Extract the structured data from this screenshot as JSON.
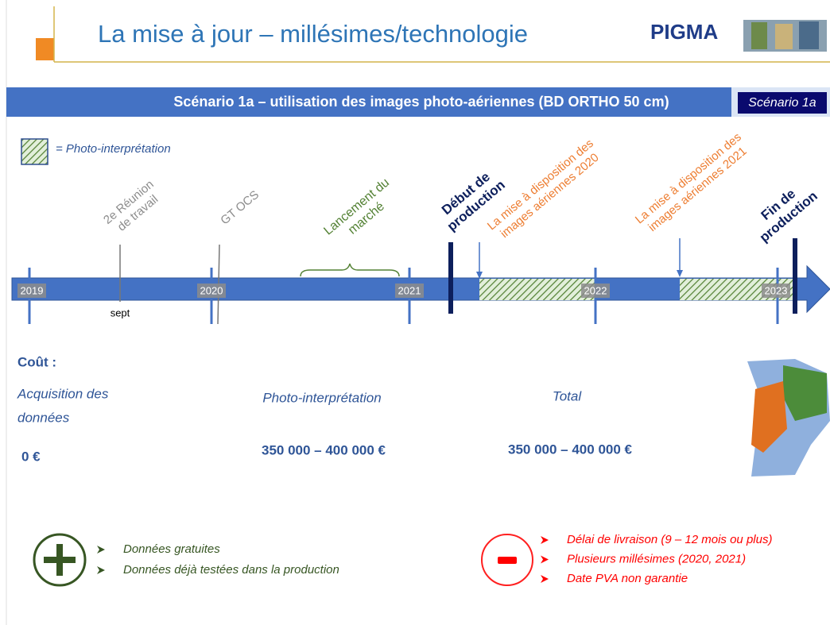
{
  "header": {
    "title": "La mise à jour – millésimes/technologie",
    "logo": "PIGMA"
  },
  "banner": {
    "title": "Scénario 1a – utilisation des images photo-aériennes (BD ORTHO 50 cm)",
    "tag": "Scénario 1a"
  },
  "legend": {
    "label": "= Photo-interprétation"
  },
  "timeline": {
    "years": [
      "2019",
      "2020",
      "2021",
      "2022",
      "2023"
    ],
    "month": "sept",
    "events": [
      {
        "lines": [
          "2e Réunion",
          "de travail"
        ]
      },
      {
        "lines": [
          "GT OCS"
        ]
      },
      {
        "lines": [
          "Lancement du",
          "marché"
        ]
      },
      {
        "lines": [
          "Début de",
          "production"
        ]
      },
      {
        "lines": [
          "La mise à disposition des",
          "images aériennes 2020"
        ]
      },
      {
        "lines": [
          "La mise à disposition des",
          "images aériennes 2021"
        ]
      },
      {
        "lines": [
          "Fin de",
          "production"
        ]
      }
    ]
  },
  "cost": {
    "heading": "Coût :",
    "columns": [
      {
        "label": [
          "Acquisition des",
          "données"
        ],
        "value": "0 €"
      },
      {
        "label": [
          "Photo-interprétation"
        ],
        "value": "350 000 – 400 000 €"
      },
      {
        "label": [
          "Total"
        ],
        "value": "350 000 – 400 000 €"
      }
    ]
  },
  "pros": [
    "Données gratuites",
    "Données déjà testées dans la production"
  ],
  "cons": [
    "Délai de livraison (9 – 12 mois ou plus)",
    "Plusieurs millésimes (2020, 2021)",
    "Date PVA non garantie"
  ]
}
